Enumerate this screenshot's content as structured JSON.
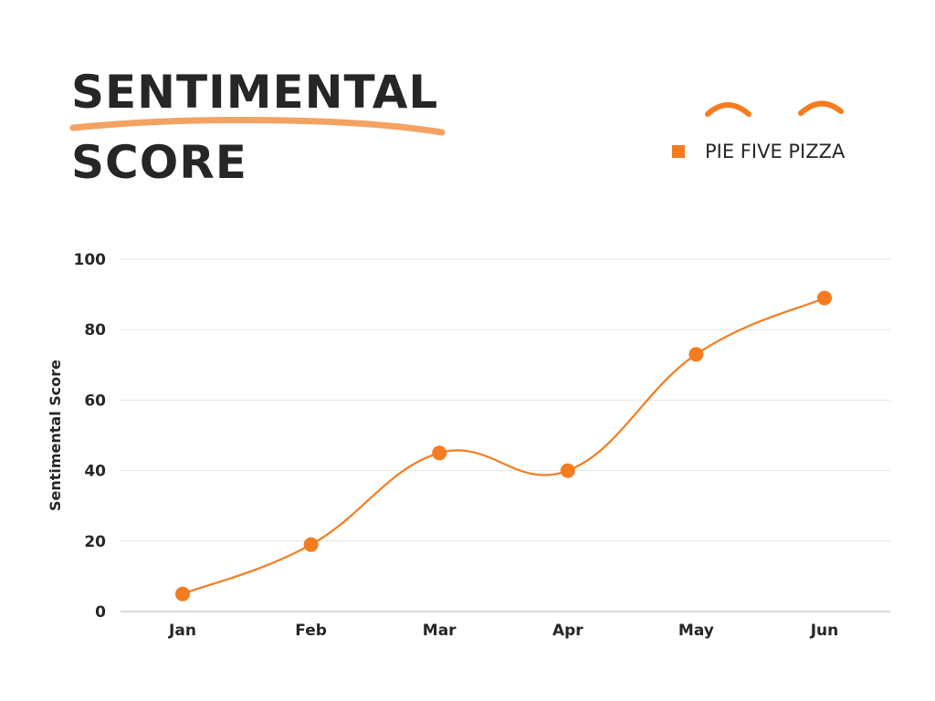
{
  "header": {
    "title_line_1": "SENTIMENTAL",
    "title_line_2": "SCORE"
  },
  "legend": {
    "label": "PIE FIVE PIZZA"
  },
  "colors": {
    "series": "#f47c20",
    "underline": "#f4a261",
    "text": "#262626",
    "grid": "#e4e4e4"
  },
  "chart_data": {
    "type": "line",
    "title": "SENTIMENTAL SCORE",
    "xlabel": "",
    "ylabel": "Sentimental Score",
    "categories": [
      "Jan",
      "Feb",
      "Mar",
      "Apr",
      "May",
      "Jun"
    ],
    "series": [
      {
        "name": "PIE FIVE PIZZA",
        "values": [
          5,
          19,
          45,
          40,
          73,
          89
        ]
      }
    ],
    "ylim": [
      0,
      100
    ],
    "yticks": [
      0,
      20,
      40,
      60,
      80,
      100
    ],
    "grid": true,
    "legend_position": "top-right",
    "smooth": true,
    "markers": true
  }
}
